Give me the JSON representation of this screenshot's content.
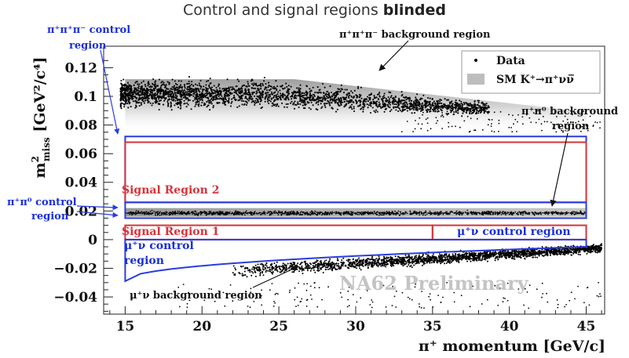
{
  "slide_title": {
    "main": "Control and signal regions ",
    "bold": "blinded"
  },
  "watermark": "NA62 Preliminary",
  "legend": {
    "data_label": "Data",
    "mc_label": "SM K⁺→π⁺νν̅"
  },
  "colors": {
    "signal_box": "#d6343a",
    "control_box": "#2a3ce0",
    "annotation_text": "#1a2fd8",
    "data_point": "#000000",
    "mc_band": "#c8c8c8",
    "watermark": "#c8c8c8"
  },
  "chart_data": {
    "type": "scatter",
    "xlabel": "π⁺ momentum [GeV/c]",
    "ylabel_main": "m",
    "ylabel_sup": "2",
    "ylabel_sub": "miss",
    "ylabel_unit": " [GeV²/c⁴]",
    "xlim": [
      13.6,
      46.2
    ],
    "ylim": [
      -0.052,
      0.135
    ],
    "xticks": [
      {
        "value": 15,
        "label": "15"
      },
      {
        "value": 20,
        "label": "20"
      },
      {
        "value": 25,
        "label": "25"
      },
      {
        "value": 30,
        "label": "30"
      },
      {
        "value": 35,
        "label": "35"
      },
      {
        "value": 40,
        "label": "40"
      },
      {
        "value": 45,
        "label": "45"
      }
    ],
    "yticks": [
      {
        "value": 0.12,
        "label": "0.12"
      },
      {
        "value": 0.1,
        "label": "0.1"
      },
      {
        "value": 0.08,
        "label": "0.08"
      },
      {
        "value": 0.06,
        "label": "0.06"
      },
      {
        "value": 0.04,
        "label": "0.04"
      },
      {
        "value": 0.02,
        "label": "0.02"
      },
      {
        "value": 0,
        "label": "0"
      },
      {
        "value": -0.02,
        "label": "−0.02"
      },
      {
        "value": -0.04,
        "label": "−0.04"
      }
    ],
    "legend_position": "top-right",
    "grid": false,
    "signal_regions": [
      {
        "name": "Signal Region 2",
        "x": [
          15,
          45
        ],
        "y": [
          0.026,
          0.068
        ]
      },
      {
        "name": "Signal Region 1",
        "x": [
          15,
          35
        ],
        "y": [
          0,
          0.01
        ]
      }
    ],
    "control_regions": [
      {
        "name": "π⁺π⁺π⁻ control region",
        "x": [
          15,
          45
        ],
        "y": [
          0.068,
          0.072
        ]
      },
      {
        "name": "π⁺π⁰ control region",
        "x": [
          15,
          45
        ],
        "y": [
          0.015,
          0.026
        ]
      },
      {
        "name": "μ⁺ν control region",
        "x": [
          35,
          45
        ],
        "y": [
          0,
          0.01
        ]
      },
      {
        "name": "μ⁺ν control region (low)",
        "x": [
          15,
          45
        ],
        "y_top": 0,
        "y_bottom_at_15": -0.029,
        "y_bottom_at_45": -0.005
      }
    ],
    "annotations": [
      {
        "id": "ppp_bkg",
        "text": "π⁺π⁺π⁻ background region"
      },
      {
        "id": "ppp_ctrl_1",
        "text": "π⁺π⁺π⁻ control"
      },
      {
        "id": "ppp_ctrl_2",
        "text": "region"
      },
      {
        "id": "pp0_bkg_1",
        "text": "π⁺π⁰ background"
      },
      {
        "id": "pp0_bkg_2",
        "text": "region"
      },
      {
        "id": "pp0_ctrl_1",
        "text": "π⁺π⁰ control"
      },
      {
        "id": "pp0_ctrl_2",
        "text": "region"
      },
      {
        "id": "sr2",
        "text": "Signal Region 2"
      },
      {
        "id": "sr1",
        "text": "Signal Region 1"
      },
      {
        "id": "mnu_ctrl_right",
        "text": "μ⁺ν control region"
      },
      {
        "id": "mnu_ctrl_low_1",
        "text": "μ⁺ν control"
      },
      {
        "id": "mnu_ctrl_low_2",
        "text": "region"
      },
      {
        "id": "mnu_bkg",
        "text": "μ⁺ν background region"
      }
    ]
  }
}
